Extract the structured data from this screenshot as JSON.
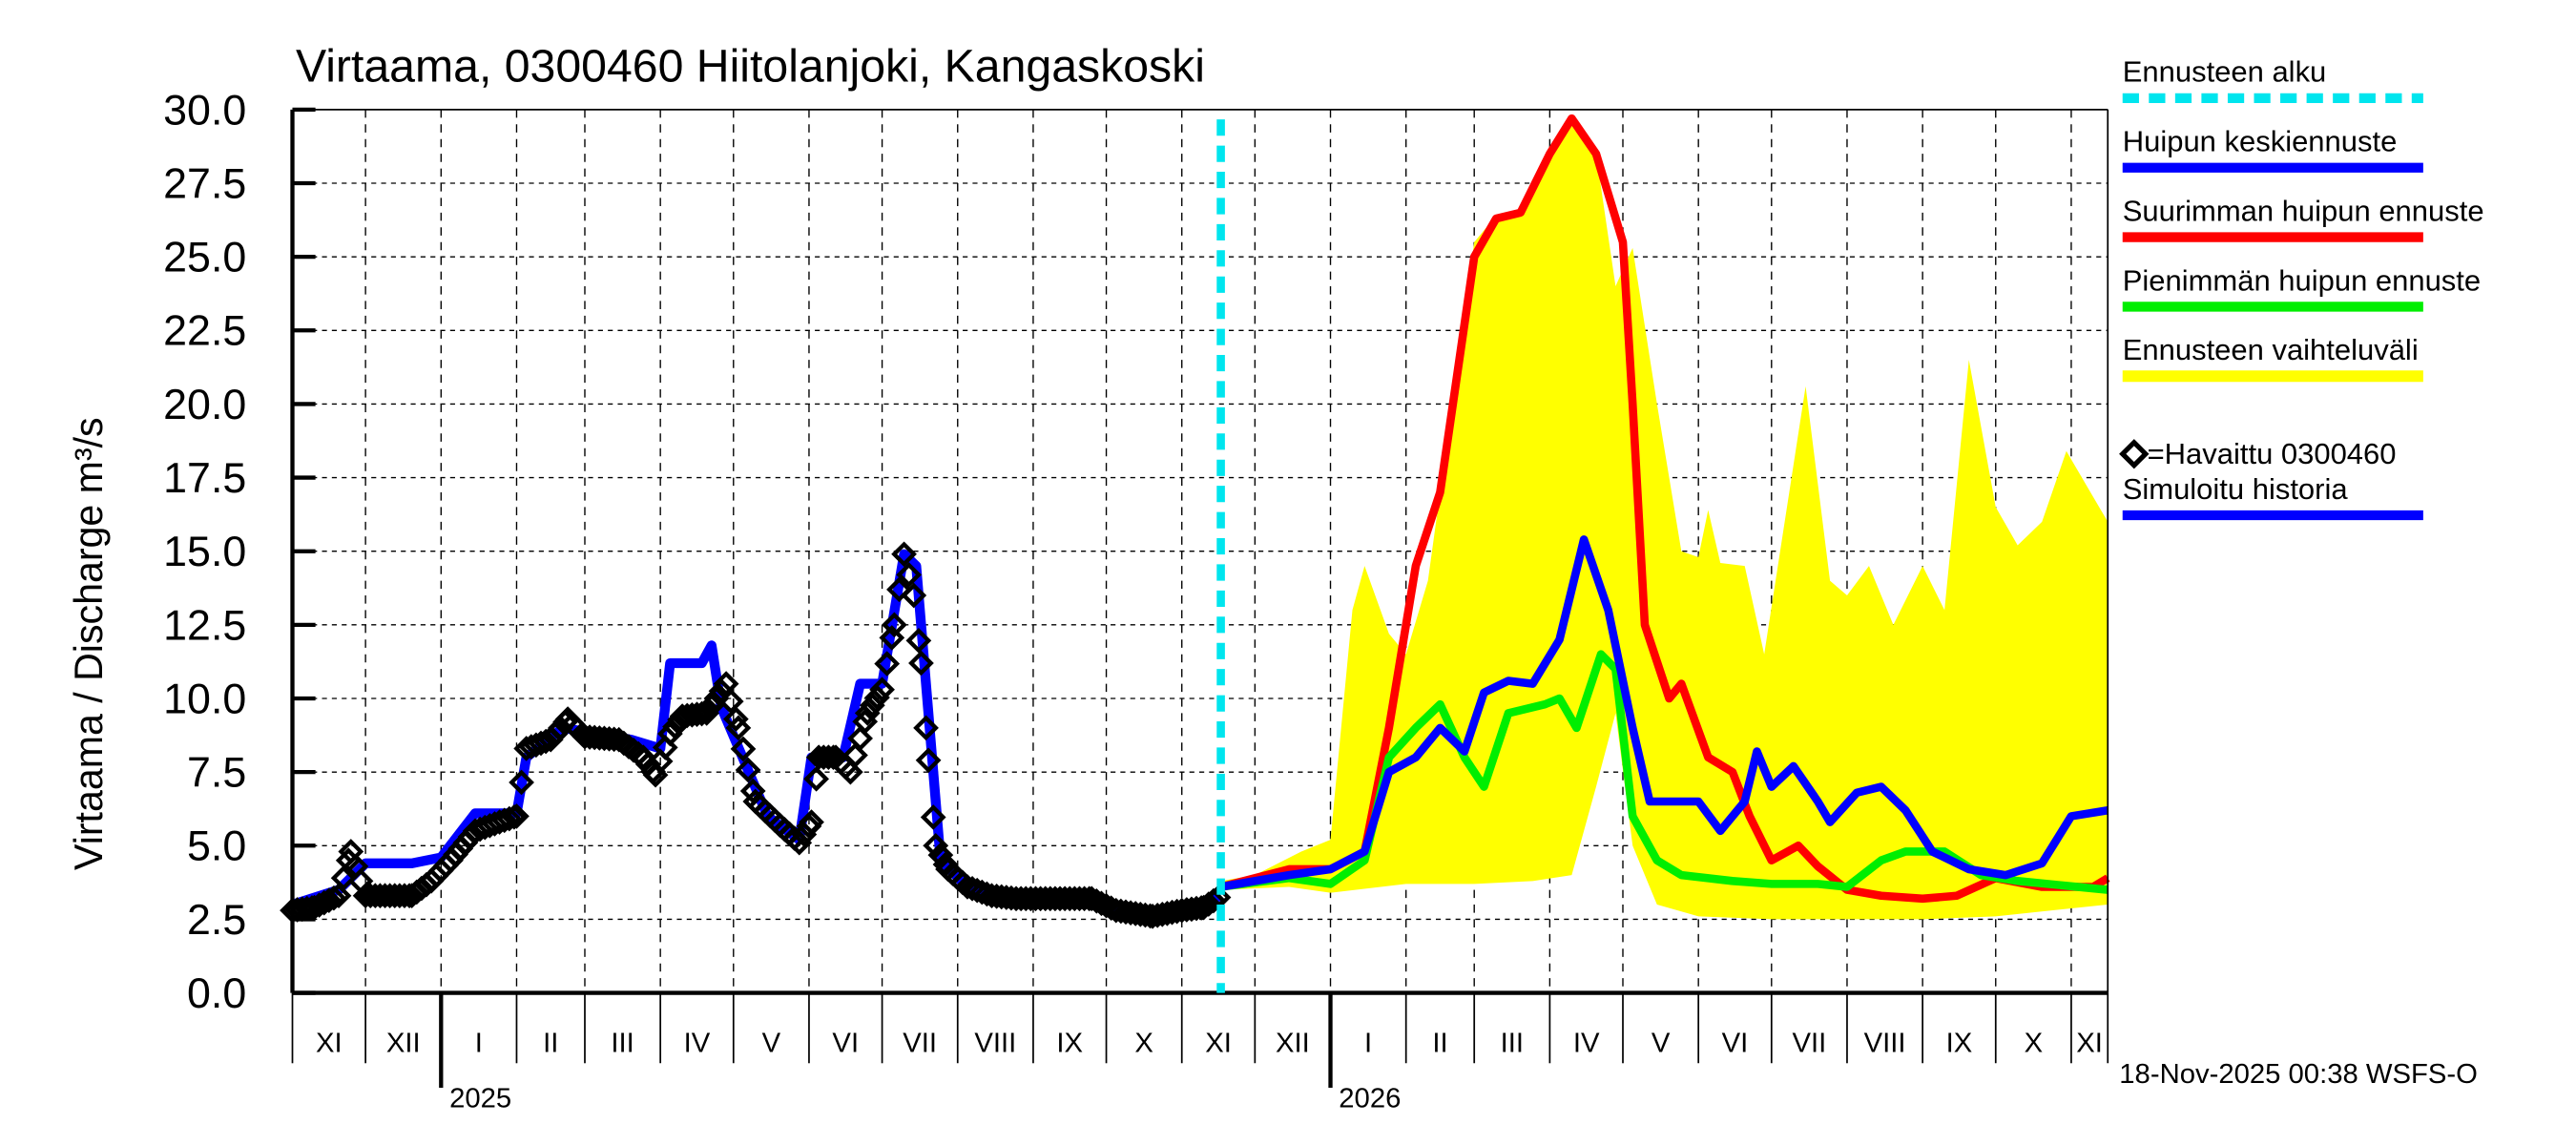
{
  "chart_data": {
    "type": "line",
    "title": "Virtaama, 0300460 Hiitolanjoki, Kangaskoski",
    "ylabel": "Virtaama / Discharge    m³/s",
    "ylim": [
      0,
      30
    ],
    "yticks": [
      "0.0",
      "2.5",
      "5.0",
      "7.5",
      "10.0",
      "12.5",
      "15.0",
      "17.5",
      "20.0",
      "22.5",
      "25.0",
      "27.5",
      "30.0"
    ],
    "xlim": [
      "2024-11-01",
      "2026-11-16"
    ],
    "grid": true,
    "legend_position": "right",
    "month_labels": [
      "XI",
      "XII",
      "I",
      "II",
      "III",
      "IV",
      "V",
      "VI",
      "VII",
      "VIII",
      "IX",
      "X",
      "XI",
      "XII",
      "I",
      "II",
      "III",
      "IV",
      "V",
      "VI",
      "VII",
      "VIII",
      "IX",
      "X",
      "XI"
    ],
    "year_labels": [
      {
        "year": "2025",
        "date": "2025-01-01"
      },
      {
        "year": "2026",
        "date": "2026-01-01"
      }
    ],
    "forecast_start": "2025-11-17",
    "footer": "18-Nov-2025 00:38 WSFS-O",
    "colors": {
      "forecast_start": "#00e5ee",
      "median": "#0000ff",
      "max": "#ff0000",
      "min": "#00ee00",
      "range": "#ffff00",
      "observed": "#000000",
      "simulated": "#0000ff"
    },
    "legend": [
      {
        "label": "Ennusteen alku",
        "key": "forecast_start",
        "style": "dashed"
      },
      {
        "label": "Huipun keskiennuste",
        "key": "median",
        "style": "line"
      },
      {
        "label": "Suurimman huipun ennuste",
        "key": "max",
        "style": "line"
      },
      {
        "label": "Pienimmän huipun ennuste",
        "key": "min",
        "style": "line"
      },
      {
        "label": "Ennusteen vaihteluväli",
        "key": "range",
        "style": "band"
      },
      {
        "label": "=Havaittu 0300460",
        "key": "observed",
        "style": "marker"
      },
      {
        "label": "Simuloitu historia",
        "key": "simulated",
        "style": "line"
      }
    ],
    "range_upper": [
      [
        "2025-11-17",
        3.8
      ],
      [
        "2025-12-01",
        4.0
      ],
      [
        "2025-12-20",
        4.8
      ],
      [
        "2026-01-01",
        5.2
      ],
      [
        "2026-01-10",
        13.0
      ],
      [
        "2026-01-15",
        14.5
      ],
      [
        "2026-01-25",
        12.2
      ],
      [
        "2026-02-01",
        11.5
      ],
      [
        "2026-02-10",
        14.0
      ],
      [
        "2026-02-20",
        20.0
      ],
      [
        "2026-03-01",
        25.5
      ],
      [
        "2026-03-10",
        26.4
      ],
      [
        "2026-03-20",
        26.5
      ],
      [
        "2026-04-01",
        28.5
      ],
      [
        "2026-04-10",
        29.7
      ],
      [
        "2026-04-20",
        28.5
      ],
      [
        "2026-04-28",
        24.0
      ],
      [
        "2026-05-05",
        25.3
      ],
      [
        "2026-05-15",
        20.0
      ],
      [
        "2026-05-25",
        15.0
      ],
      [
        "2026-06-01",
        14.8
      ],
      [
        "2026-06-05",
        16.4
      ],
      [
        "2026-06-10",
        14.6
      ],
      [
        "2026-06-20",
        14.5
      ],
      [
        "2026-06-28",
        11.5
      ],
      [
        "2026-07-15",
        20.6
      ],
      [
        "2026-07-25",
        14.0
      ],
      [
        "2026-08-01",
        13.5
      ],
      [
        "2026-08-10",
        14.5
      ],
      [
        "2026-08-20",
        12.5
      ],
      [
        "2026-09-01",
        14.5
      ],
      [
        "2026-09-10",
        13.0
      ],
      [
        "2026-09-20",
        21.5
      ],
      [
        "2026-10-01",
        16.5
      ],
      [
        "2026-10-10",
        15.2
      ],
      [
        "2026-10-20",
        16.0
      ],
      [
        "2026-10-30",
        18.4
      ],
      [
        "2026-11-16",
        16.0
      ]
    ],
    "range_lower": [
      [
        "2025-11-17",
        3.5
      ],
      [
        "2025-12-15",
        3.6
      ],
      [
        "2026-01-01",
        3.4
      ],
      [
        "2026-02-01",
        3.7
      ],
      [
        "2026-03-01",
        3.7
      ],
      [
        "2026-03-25",
        3.8
      ],
      [
        "2026-04-10",
        4.0
      ],
      [
        "2026-04-20",
        7.0
      ],
      [
        "2026-04-28",
        9.5
      ],
      [
        "2026-05-05",
        5.0
      ],
      [
        "2026-05-15",
        3.0
      ],
      [
        "2026-06-01",
        2.6
      ],
      [
        "2026-07-01",
        2.5
      ],
      [
        "2026-08-01",
        2.5
      ],
      [
        "2026-09-01",
        2.5
      ],
      [
        "2026-10-01",
        2.6
      ],
      [
        "2026-11-16",
        3.0
      ]
    ],
    "series": [
      {
        "name": "Suurimman huipun ennuste",
        "key": "max",
        "points": [
          [
            "2025-11-17",
            3.6
          ],
          [
            "2025-12-15",
            4.2
          ],
          [
            "2026-01-01",
            4.2
          ],
          [
            "2026-01-15",
            4.8
          ],
          [
            "2026-01-25",
            9.0
          ],
          [
            "2026-02-05",
            14.5
          ],
          [
            "2026-02-15",
            17.0
          ],
          [
            "2026-03-01",
            25.0
          ],
          [
            "2026-03-10",
            26.3
          ],
          [
            "2026-03-20",
            26.5
          ],
          [
            "2026-04-01",
            28.5
          ],
          [
            "2026-04-10",
            29.7
          ],
          [
            "2026-04-20",
            28.5
          ],
          [
            "2026-05-01",
            25.5
          ],
          [
            "2026-05-05",
            20.0
          ],
          [
            "2026-05-10",
            12.5
          ],
          [
            "2026-05-20",
            10.0
          ],
          [
            "2026-05-25",
            10.5
          ],
          [
            "2026-06-05",
            8.0
          ],
          [
            "2026-06-15",
            7.5
          ],
          [
            "2026-06-22",
            6.0
          ],
          [
            "2026-07-01",
            4.5
          ],
          [
            "2026-07-12",
            5.0
          ],
          [
            "2026-07-20",
            4.3
          ],
          [
            "2026-08-01",
            3.5
          ],
          [
            "2026-08-15",
            3.3
          ],
          [
            "2026-09-01",
            3.2
          ],
          [
            "2026-09-15",
            3.3
          ],
          [
            "2026-10-01",
            3.9
          ],
          [
            "2026-10-20",
            3.6
          ],
          [
            "2026-11-10",
            3.6
          ],
          [
            "2026-11-16",
            3.9
          ]
        ]
      },
      {
        "name": "Pienimmän huipun ennuste",
        "key": "min",
        "points": [
          [
            "2025-11-17",
            3.6
          ],
          [
            "2025-12-15",
            3.9
          ],
          [
            "2026-01-01",
            3.7
          ],
          [
            "2026-01-15",
            4.5
          ],
          [
            "2026-01-25",
            8.0
          ],
          [
            "2026-02-05",
            9.0
          ],
          [
            "2026-02-15",
            9.8
          ],
          [
            "2026-02-25",
            8.0
          ],
          [
            "2026-03-05",
            7.0
          ],
          [
            "2026-03-15",
            9.5
          ],
          [
            "2026-03-30",
            9.8
          ],
          [
            "2026-04-05",
            10.0
          ],
          [
            "2026-04-12",
            9.0
          ],
          [
            "2026-04-22",
            11.5
          ],
          [
            "2026-04-28",
            11.0
          ],
          [
            "2026-05-05",
            6.0
          ],
          [
            "2026-05-15",
            4.5
          ],
          [
            "2026-05-25",
            4.0
          ],
          [
            "2026-06-15",
            3.8
          ],
          [
            "2026-07-01",
            3.7
          ],
          [
            "2026-07-20",
            3.7
          ],
          [
            "2026-08-01",
            3.6
          ],
          [
            "2026-08-15",
            4.5
          ],
          [
            "2026-08-25",
            4.8
          ],
          [
            "2026-09-10",
            4.8
          ],
          [
            "2026-09-25",
            4.0
          ],
          [
            "2026-10-10",
            3.8
          ],
          [
            "2026-11-16",
            3.5
          ]
        ]
      },
      {
        "name": "Huipun keskiennuste",
        "key": "median",
        "points": [
          [
            "2025-11-17",
            3.6
          ],
          [
            "2025-12-15",
            4.0
          ],
          [
            "2026-01-01",
            4.2
          ],
          [
            "2026-01-15",
            4.8
          ],
          [
            "2026-01-25",
            7.5
          ],
          [
            "2026-02-05",
            8.0
          ],
          [
            "2026-02-15",
            9.0
          ],
          [
            "2026-02-25",
            8.2
          ],
          [
            "2026-03-05",
            10.2
          ],
          [
            "2026-03-15",
            10.6
          ],
          [
            "2026-03-25",
            10.5
          ],
          [
            "2026-04-05",
            12.0
          ],
          [
            "2026-04-15",
            15.4
          ],
          [
            "2026-04-25",
            13.0
          ],
          [
            "2026-05-05",
            9.0
          ],
          [
            "2026-05-12",
            6.5
          ],
          [
            "2026-05-20",
            6.5
          ],
          [
            "2026-06-01",
            6.5
          ],
          [
            "2026-06-10",
            5.5
          ],
          [
            "2026-06-20",
            6.5
          ],
          [
            "2026-06-25",
            8.2
          ],
          [
            "2026-07-01",
            7.0
          ],
          [
            "2026-07-10",
            7.7
          ],
          [
            "2026-07-20",
            6.5
          ],
          [
            "2026-07-25",
            5.8
          ],
          [
            "2026-08-05",
            6.8
          ],
          [
            "2026-08-15",
            7.0
          ],
          [
            "2026-08-25",
            6.2
          ],
          [
            "2026-09-05",
            4.8
          ],
          [
            "2026-09-20",
            4.2
          ],
          [
            "2026-10-05",
            4.0
          ],
          [
            "2026-10-20",
            4.4
          ],
          [
            "2026-11-01",
            6.0
          ],
          [
            "2026-11-16",
            6.2
          ]
        ]
      },
      {
        "name": "Simuloitu historia",
        "key": "simulated",
        "points": [
          [
            "2024-11-01",
            3.0
          ],
          [
            "2024-11-20",
            3.5
          ],
          [
            "2024-12-01",
            4.4
          ],
          [
            "2024-12-20",
            4.4
          ],
          [
            "2025-01-01",
            4.6
          ],
          [
            "2025-01-15",
            6.1
          ],
          [
            "2025-02-01",
            6.1
          ],
          [
            "2025-02-05",
            8.0
          ],
          [
            "2025-02-20",
            9.0
          ],
          [
            "2025-03-20",
            8.6
          ],
          [
            "2025-04-01",
            8.3
          ],
          [
            "2025-04-05",
            11.2
          ],
          [
            "2025-04-18",
            11.2
          ],
          [
            "2025-04-22",
            11.8
          ],
          [
            "2025-04-26",
            9.7
          ],
          [
            "2025-05-15",
            6.0
          ],
          [
            "2025-05-28",
            5.2
          ],
          [
            "2025-06-02",
            8.0
          ],
          [
            "2025-06-15",
            8.0
          ],
          [
            "2025-06-22",
            10.5
          ],
          [
            "2025-07-01",
            10.5
          ],
          [
            "2025-07-10",
            14.9
          ],
          [
            "2025-07-15",
            14.5
          ],
          [
            "2025-07-25",
            4.5
          ],
          [
            "2025-08-05",
            3.6
          ],
          [
            "2025-08-15",
            3.3
          ],
          [
            "2025-09-25",
            3.2
          ],
          [
            "2025-10-05",
            2.8
          ],
          [
            "2025-10-20",
            2.6
          ],
          [
            "2025-11-01",
            2.8
          ],
          [
            "2025-11-17",
            3.3
          ]
        ]
      },
      {
        "name": "Havaittu 0300460",
        "key": "observed",
        "points": [
          [
            "2024-11-01",
            2.8
          ],
          [
            "2024-11-10",
            2.9
          ],
          [
            "2024-11-20",
            3.3
          ],
          [
            "2024-11-25",
            4.8
          ],
          [
            "2024-12-01",
            3.3
          ],
          [
            "2024-12-20",
            3.3
          ],
          [
            "2024-12-28",
            3.8
          ],
          [
            "2025-01-05",
            4.5
          ],
          [
            "2025-01-15",
            5.5
          ],
          [
            "2025-01-25",
            5.8
          ],
          [
            "2025-02-01",
            6.0
          ],
          [
            "2025-02-05",
            8.3
          ],
          [
            "2025-02-15",
            8.6
          ],
          [
            "2025-02-22",
            9.3
          ],
          [
            "2025-03-01",
            8.7
          ],
          [
            "2025-03-15",
            8.6
          ],
          [
            "2025-03-25",
            8.0
          ],
          [
            "2025-03-30",
            7.4
          ],
          [
            "2025-04-05",
            8.8
          ],
          [
            "2025-04-10",
            9.4
          ],
          [
            "2025-04-20",
            9.5
          ],
          [
            "2025-04-28",
            10.5
          ],
          [
            "2025-05-03",
            9.0
          ],
          [
            "2025-05-10",
            6.5
          ],
          [
            "2025-05-20",
            5.7
          ],
          [
            "2025-05-28",
            5.1
          ],
          [
            "2025-06-02",
            5.8
          ],
          [
            "2025-06-05",
            8.0
          ],
          [
            "2025-06-12",
            8.0
          ],
          [
            "2025-06-18",
            7.5
          ],
          [
            "2025-06-25",
            9.5
          ],
          [
            "2025-07-01",
            10.3
          ],
          [
            "2025-07-06",
            12.5
          ],
          [
            "2025-07-10",
            14.9
          ],
          [
            "2025-07-14",
            13.5
          ],
          [
            "2025-07-17",
            11.2
          ],
          [
            "2025-07-20",
            7.9
          ],
          [
            "2025-07-23",
            5.0
          ],
          [
            "2025-07-28",
            4.2
          ],
          [
            "2025-08-05",
            3.6
          ],
          [
            "2025-08-15",
            3.3
          ],
          [
            "2025-08-25",
            3.2
          ],
          [
            "2025-09-10",
            3.2
          ],
          [
            "2025-09-25",
            3.2
          ],
          [
            "2025-10-05",
            2.8
          ],
          [
            "2025-10-20",
            2.6
          ],
          [
            "2025-11-01",
            2.8
          ],
          [
            "2025-11-10",
            2.9
          ],
          [
            "2025-11-17",
            3.3
          ]
        ]
      }
    ]
  }
}
